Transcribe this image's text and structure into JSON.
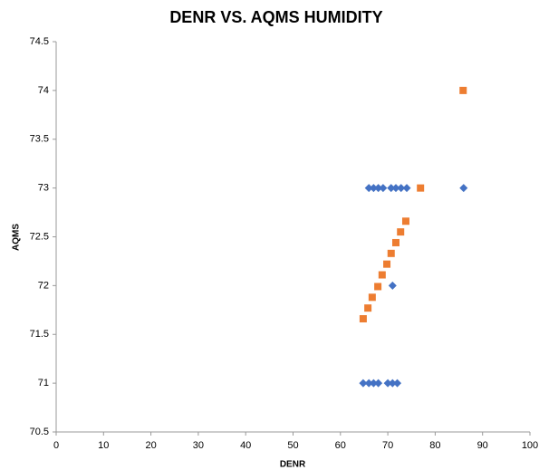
{
  "chart_data": {
    "type": "scatter",
    "title": "DENR VS. AQMS HUMIDITY",
    "x_label": "DENR",
    "y_label": "AQMS",
    "series": [
      {
        "color": "#4472c4",
        "marker": "diamond",
        "x": [
          66,
          67,
          68,
          69,
          70.7,
          71.7,
          72.8,
          74,
          86,
          71,
          64.8,
          66,
          67,
          68,
          70,
          71,
          72
        ],
        "values": [
          73,
          73,
          73,
          73,
          73,
          73,
          73,
          73,
          73,
          72,
          71,
          71,
          71,
          71,
          71,
          71,
          71
        ]
      },
      {
        "color": "#ed7d31",
        "marker": "square",
        "x": [
          64.8,
          65.8,
          66.7,
          67.9,
          68.8,
          69.8,
          70.7,
          71.7,
          72.7,
          73.8,
          76.9,
          85.9
        ],
        "values": [
          71.66,
          71.77,
          71.88,
          71.99,
          72.11,
          72.22,
          72.33,
          72.44,
          72.55,
          72.66,
          73,
          74
        ]
      }
    ],
    "xlim": [
      0,
      100
    ],
    "xticks": [
      0,
      10,
      20,
      30,
      40,
      50,
      60,
      70,
      80,
      90,
      100
    ],
    "ylim": [
      70.5,
      74.5
    ],
    "yticks": [
      70.5,
      71,
      71.5,
      72,
      72.5,
      73,
      73.5,
      74,
      74.5
    ],
    "grid": false
  }
}
